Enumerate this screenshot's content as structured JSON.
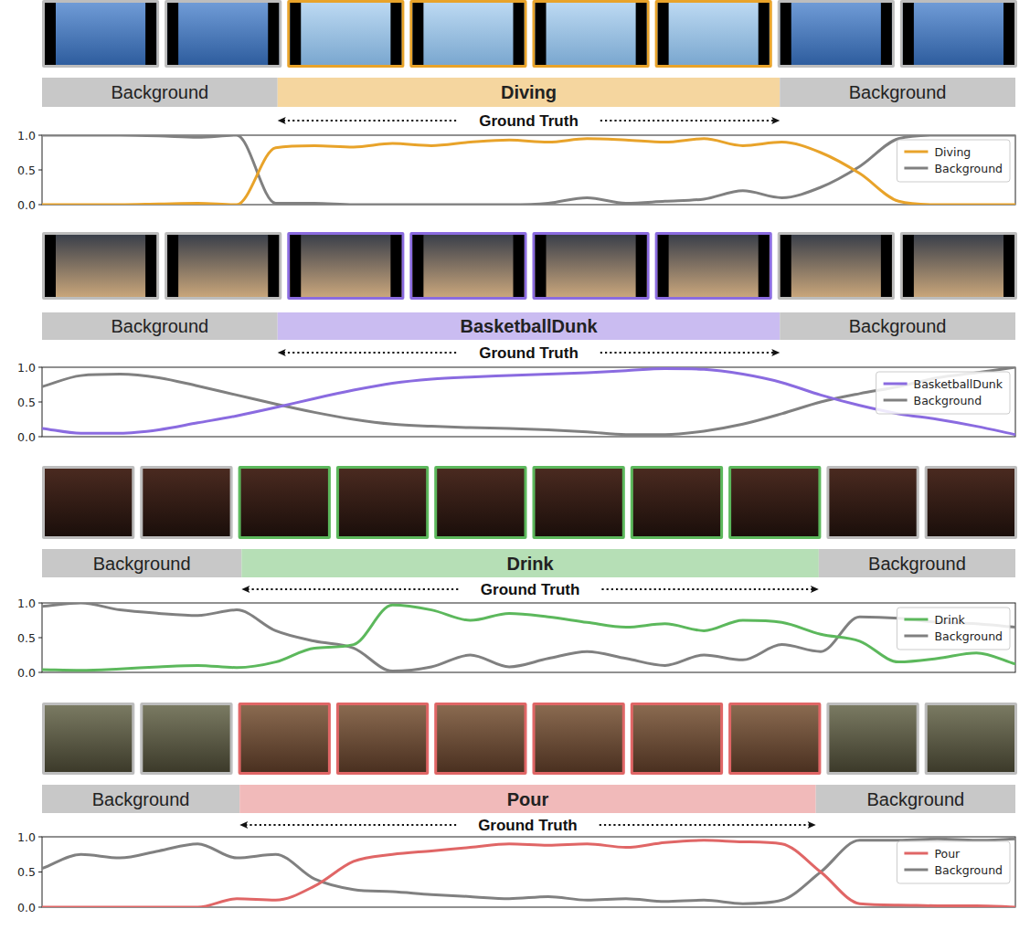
{
  "chart_data": [
    {
      "type": "line",
      "annotation": "Ground Truth",
      "tick_labels": "y",
      "legend": "upper right",
      "segments": [
        {
          "label": "Background",
          "start": 0,
          "end": 24.2
        },
        {
          "label": "Diving",
          "start": 24.2,
          "end": 75.8
        },
        {
          "label": "Background",
          "start": 75.8,
          "end": 100
        }
      ],
      "x": [
        0,
        4,
        8,
        12,
        16,
        20,
        24,
        28,
        32,
        36,
        40,
        44,
        48,
        52,
        56,
        60,
        64,
        68,
        72,
        76,
        80,
        84,
        88,
        92,
        96,
        100
      ],
      "xlim": [
        0,
        100
      ],
      "ylim": [
        0,
        1
      ],
      "yticks": [
        {
          "value": 0,
          "label": "0.0"
        },
        {
          "value": 0.5,
          "label": "0.5"
        },
        {
          "value": 1,
          "label": "1.0"
        }
      ],
      "series": [
        {
          "name": "Diving",
          "color": "#e8a32a",
          "values": [
            0,
            0,
            0,
            0.01,
            0.02,
            0,
            0.82,
            0.85,
            0.83,
            0.88,
            0.85,
            0.9,
            0.93,
            0.9,
            0.95,
            0.93,
            0.9,
            0.95,
            0.85,
            0.9,
            0.75,
            0.45,
            0.05,
            0,
            0,
            0
          ]
        },
        {
          "name": "Background",
          "color": "#808080",
          "values": [
            1,
            1,
            1,
            0.99,
            0.97,
            1,
            0.02,
            0.02,
            0,
            0,
            0,
            0,
            0,
            0.02,
            0.1,
            0.02,
            0.05,
            0.08,
            0.2,
            0.1,
            0.25,
            0.55,
            0.95,
            1,
            1,
            1
          ]
        }
      ]
    },
    {
      "type": "line",
      "annotation": "Ground Truth",
      "tick_labels": "y",
      "legend": "upper right",
      "segments": [
        {
          "label": "Background",
          "start": 0,
          "end": 24.2
        },
        {
          "label": "BasketballDunk",
          "start": 24.2,
          "end": 75.8
        },
        {
          "label": "Background",
          "start": 75.8,
          "end": 100
        }
      ],
      "x": [
        0,
        4,
        8,
        12,
        16,
        20,
        24,
        28,
        32,
        36,
        40,
        44,
        48,
        52,
        56,
        60,
        64,
        68,
        72,
        76,
        80,
        84,
        88,
        92,
        96,
        100
      ],
      "xlim": [
        0,
        100
      ],
      "ylim": [
        0,
        1
      ],
      "yticks": [
        {
          "value": 0,
          "label": "0.0"
        },
        {
          "value": 0.5,
          "label": "0.5"
        },
        {
          "value": 1,
          "label": "1.0"
        }
      ],
      "series": [
        {
          "name": "BasketballDunk",
          "color": "#8a6be0",
          "values": [
            0.12,
            0.05,
            0.05,
            0.1,
            0.2,
            0.3,
            0.42,
            0.55,
            0.67,
            0.77,
            0.83,
            0.86,
            0.88,
            0.9,
            0.92,
            0.95,
            0.98,
            0.97,
            0.9,
            0.78,
            0.6,
            0.45,
            0.33,
            0.25,
            0.15,
            0.03
          ]
        },
        {
          "name": "Background",
          "color": "#808080",
          "values": [
            0.72,
            0.88,
            0.9,
            0.85,
            0.73,
            0.6,
            0.47,
            0.35,
            0.25,
            0.18,
            0.15,
            0.13,
            0.12,
            0.1,
            0.07,
            0.03,
            0.03,
            0.08,
            0.18,
            0.33,
            0.5,
            0.62,
            0.72,
            0.85,
            0.92,
            1
          ]
        }
      ]
    },
    {
      "type": "line",
      "annotation": "Ground Truth",
      "tick_labels": "y",
      "legend": "upper right",
      "segments": [
        {
          "label": "Background",
          "start": 0,
          "end": 20.5
        },
        {
          "label": "Drink",
          "start": 20.5,
          "end": 79.8
        },
        {
          "label": "Background",
          "start": 79.8,
          "end": 100
        }
      ],
      "x": [
        0,
        4,
        8,
        12,
        16,
        20,
        24,
        28,
        32,
        36,
        40,
        44,
        48,
        52,
        56,
        60,
        64,
        68,
        72,
        76,
        80,
        84,
        88,
        92,
        96,
        100
      ],
      "xlim": [
        0,
        100
      ],
      "ylim": [
        0,
        1
      ],
      "yticks": [
        {
          "value": 0,
          "label": "0.0"
        },
        {
          "value": 0.5,
          "label": "0.5"
        },
        {
          "value": 1,
          "label": "1.0"
        }
      ],
      "series": [
        {
          "name": "Drink",
          "color": "#5cb85c",
          "values": [
            0.04,
            0.03,
            0.05,
            0.08,
            0.1,
            0.07,
            0.15,
            0.35,
            0.4,
            0.97,
            0.9,
            0.75,
            0.85,
            0.8,
            0.72,
            0.65,
            0.7,
            0.6,
            0.75,
            0.72,
            0.55,
            0.45,
            0.15,
            0.2,
            0.28,
            0.12
          ]
        },
        {
          "name": "Background",
          "color": "#808080",
          "values": [
            0.95,
            1,
            0.9,
            0.85,
            0.82,
            0.9,
            0.6,
            0.45,
            0.35,
            0.02,
            0.08,
            0.25,
            0.08,
            0.2,
            0.3,
            0.2,
            0.1,
            0.25,
            0.18,
            0.4,
            0.3,
            0.8,
            0.78,
            0.72,
            0.7,
            0.65
          ]
        }
      ]
    },
    {
      "type": "line",
      "annotation": "Ground Truth",
      "tick_labels": "y",
      "legend": "upper right",
      "segments": [
        {
          "label": "Background",
          "start": 0,
          "end": 20.3
        },
        {
          "label": "Pour",
          "start": 20.3,
          "end": 79.5
        },
        {
          "label": "Background",
          "start": 79.5,
          "end": 100
        }
      ],
      "x": [
        0,
        4,
        8,
        12,
        16,
        20,
        24,
        28,
        32,
        36,
        40,
        44,
        48,
        52,
        56,
        60,
        64,
        68,
        72,
        76,
        80,
        84,
        88,
        92,
        96,
        100
      ],
      "xlim": [
        0,
        100
      ],
      "ylim": [
        0,
        1
      ],
      "yticks": [
        {
          "value": 0,
          "label": "0.0"
        },
        {
          "value": 0.5,
          "label": "0.5"
        },
        {
          "value": 1,
          "label": "1.0"
        }
      ],
      "series": [
        {
          "name": "Pour",
          "color": "#e06666",
          "values": [
            0,
            0,
            0,
            0,
            0,
            0.12,
            0.1,
            0.3,
            0.65,
            0.75,
            0.8,
            0.85,
            0.9,
            0.88,
            0.9,
            0.85,
            0.92,
            0.95,
            0.93,
            0.9,
            0.5,
            0.05,
            0.03,
            0.02,
            0.02,
            0
          ]
        },
        {
          "name": "Background",
          "color": "#808080",
          "values": [
            0.55,
            0.75,
            0.7,
            0.8,
            0.9,
            0.7,
            0.75,
            0.4,
            0.25,
            0.22,
            0.18,
            0.15,
            0.12,
            0.15,
            0.1,
            0.12,
            0.08,
            0.1,
            0.05,
            0.1,
            0.5,
            0.95,
            0.95,
            0.97,
            0.95,
            0.97
          ]
        }
      ]
    }
  ]
}
